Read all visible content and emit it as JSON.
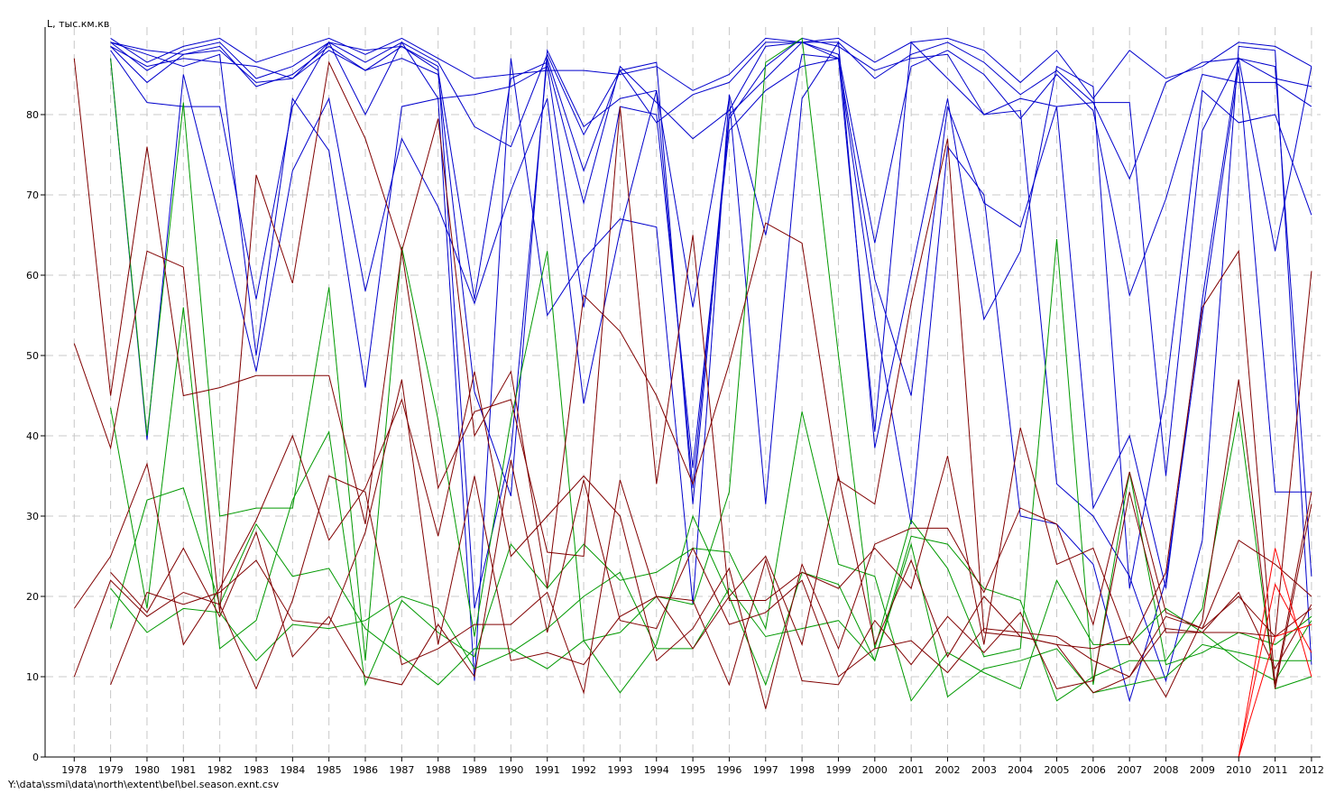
{
  "file_path": "Y:\\data\\ssmi\\data\\north\\extent\\bel\\bel.season.exnt.csv",
  "chart_data": {
    "type": "line",
    "title": "",
    "xlabel": "",
    "ylabel": "L, тыс.км.кв",
    "xlim": [
      1977.2,
      2012.25
    ],
    "ylim": [
      0,
      90
    ],
    "yticks": [
      0,
      10,
      20,
      30,
      40,
      50,
      60,
      70,
      80
    ],
    "grid": true,
    "legend": "none",
    "x": [
      1978,
      1979,
      1980,
      1981,
      1982,
      1983,
      1984,
      1985,
      1986,
      1987,
      1988,
      1989,
      1990,
      1991,
      1992,
      1993,
      1994,
      1995,
      1996,
      1997,
      1998,
      1999,
      2000,
      2001,
      2002,
      2003,
      2004,
      2005,
      2006,
      2007,
      2008,
      2009,
      2010,
      2011,
      2012
    ],
    "series": [
      {
        "color": "#0000cc",
        "values": [
          null,
          89.5,
          86.5,
          88.5,
          89.5,
          86.5,
          88.0,
          89.5,
          87.5,
          89.5,
          87.0,
          84.5,
          85.0,
          85.5,
          85.5,
          85.0,
          86.0,
          83.0,
          85.0,
          89.5,
          89.0,
          89.5,
          86.5,
          89.0,
          89.5,
          88.0,
          84.0,
          88.0,
          82.0,
          88.0,
          84.5,
          86.0,
          89.0,
          88.5,
          86.0
        ]
      },
      {
        "color": "#0000cc",
        "values": [
          null,
          89.0,
          85.5,
          88.0,
          89.0,
          84.5,
          86.0,
          89.0,
          86.5,
          89.0,
          86.5,
          78.5,
          76.0,
          87.5,
          77.5,
          85.5,
          79.0,
          82.5,
          84.0,
          89.0,
          89.0,
          89.0,
          84.5,
          87.5,
          89.0,
          86.5,
          82.5,
          85.5,
          81.5,
          72.0,
          84.0,
          86.5,
          87.0,
          84.5,
          83.5
        ]
      },
      {
        "color": "#0000cc",
        "values": [
          null,
          88.5,
          84.0,
          87.5,
          88.5,
          83.5,
          85.0,
          88.5,
          85.5,
          88.5,
          85.5,
          57.0,
          84.5,
          86.5,
          69.0,
          86.0,
          81.5,
          77.0,
          80.5,
          88.5,
          89.0,
          87.5,
          64.0,
          86.0,
          88.0,
          85.0,
          79.5,
          85.0,
          80.5,
          57.5,
          69.5,
          85.0,
          84.0,
          84.0,
          81.0
        ]
      },
      {
        "color": "#0000cc",
        "values": [
          null,
          88.0,
          81.5,
          81.0,
          81.0,
          57.0,
          81.0,
          89.0,
          80.0,
          89.0,
          82.0,
          82.5,
          83.5,
          86.0,
          56.0,
          81.0,
          80.0,
          36.0,
          78.0,
          83.0,
          86.0,
          87.0,
          59.5,
          45.0,
          81.0,
          69.0,
          66.0,
          81.0,
          81.5,
          81.5,
          35.0,
          78.0,
          87.0,
          63.0,
          86.0
        ]
      },
      {
        "color": "#0000cc",
        "values": [
          null,
          87.0,
          39.5,
          85.0,
          67.0,
          48.0,
          73.0,
          82.0,
          58.0,
          77.0,
          68.5,
          56.5,
          70.5,
          82.0,
          44.0,
          65.5,
          83.0,
          56.0,
          82.0,
          31.5,
          82.0,
          89.0,
          38.5,
          60.0,
          82.0,
          54.5,
          63.0,
          86.0,
          83.5,
          21.0,
          45.5,
          83.0,
          79.0,
          80.0,
          67.5
        ]
      },
      {
        "color": "#0000cc",
        "values": [
          null,
          89.0,
          87.5,
          86.0,
          87.5,
          50.0,
          82.0,
          75.5,
          46.0,
          81.0,
          82.0,
          9.5,
          87.0,
          55.0,
          62.0,
          67.0,
          66.0,
          19.0,
          82.5,
          65.0,
          87.5,
          87.0,
          55.0,
          29.0,
          76.0,
          70.0,
          30.0,
          29.0,
          24.0,
          7.0,
          22.0,
          55.0,
          86.0,
          33.0,
          33.0
        ]
      },
      {
        "color": "#0000cc",
        "values": [
          null,
          89.0,
          88.0,
          87.5,
          88.0,
          84.0,
          84.5,
          89.0,
          88.0,
          88.5,
          86.0,
          18.5,
          38.0,
          87.0,
          73.0,
          85.5,
          86.5,
          31.5,
          79.5,
          86.0,
          89.5,
          88.5,
          85.5,
          87.0,
          87.5,
          80.0,
          80.5,
          34.0,
          30.0,
          22.5,
          9.5,
          27.0,
          88.5,
          88.0,
          11.5
        ]
      },
      {
        "color": "#0000cc",
        "values": [
          null,
          88.5,
          86.0,
          87.0,
          86.5,
          86.0,
          84.5,
          88.0,
          85.5,
          87.0,
          85.0,
          45.5,
          32.5,
          88.0,
          78.5,
          82.0,
          83.0,
          33.5,
          80.0,
          84.5,
          89.0,
          87.0,
          40.5,
          89.0,
          84.5,
          80.0,
          82.0,
          81.0,
          31.0,
          40.0,
          21.0,
          57.0,
          87.0,
          86.0,
          22.5
        ]
      },
      {
        "color": "#009900",
        "values": [
          null,
          87.0,
          40.0,
          81.5,
          30.0,
          31.0,
          31.0,
          58.5,
          12.0,
          63.5,
          42.0,
          15.0,
          42.0,
          63.0,
          14.5,
          15.5,
          20.0,
          19.0,
          33.0,
          86.5,
          89.5,
          50.0,
          13.5,
          29.5,
          23.5,
          12.5,
          13.5,
          64.5,
          9.0,
          35.5,
          11.5,
          13.0,
          15.5,
          14.0,
          17.5
        ]
      },
      {
        "color": "#009900",
        "values": [
          null,
          43.5,
          18.5,
          56.0,
          13.5,
          17.0,
          32.0,
          40.5,
          9.0,
          19.5,
          15.5,
          12.5,
          26.5,
          21.0,
          26.5,
          22.0,
          23.0,
          26.0,
          25.5,
          16.0,
          43.0,
          24.0,
          22.5,
          7.0,
          13.0,
          10.5,
          8.5,
          22.0,
          14.0,
          14.0,
          18.5,
          15.5,
          12.0,
          9.5,
          17.0
        ]
      },
      {
        "color": "#009900",
        "values": [
          null,
          16.0,
          32.0,
          33.5,
          19.0,
          29.0,
          22.5,
          23.5,
          16.0,
          12.5,
          9.0,
          13.5,
          13.5,
          11.0,
          14.5,
          8.0,
          14.0,
          30.0,
          20.0,
          9.0,
          23.0,
          21.5,
          12.0,
          27.5,
          26.5,
          21.0,
          19.5,
          7.0,
          10.0,
          12.0,
          12.0,
          18.5,
          43.0,
          8.5,
          10.0
        ]
      },
      {
        "color": "#009900",
        "values": [
          null,
          21.0,
          15.5,
          18.5,
          18.0,
          12.0,
          16.5,
          16.0,
          17.0,
          20.0,
          18.5,
          11.0,
          13.0,
          16.0,
          20.0,
          23.0,
          13.5,
          13.5,
          21.0,
          15.0,
          16.0,
          17.0,
          12.0,
          26.5,
          7.5,
          11.0,
          12.0,
          13.5,
          8.0,
          9.0,
          10.0,
          14.0,
          13.0,
          12.0,
          12.0
        ]
      },
      {
        "color": "#800000",
        "values": [
          87.0,
          45.0,
          76.0,
          45.0,
          46.0,
          47.5,
          47.5,
          47.5,
          29.0,
          63.0,
          79.5,
          40.0,
          48.0,
          21.0,
          57.5,
          53.0,
          45.0,
          34.0,
          49.0,
          66.5,
          64.0,
          34.5,
          31.5,
          56.5,
          77.0,
          15.5,
          15.0,
          14.0,
          8.0,
          10.0,
          16.0,
          15.5,
          15.5,
          15.0,
          60.5
        ]
      },
      {
        "color": "#800000",
        "values": [
          51.5,
          38.5,
          63.0,
          61.0,
          18.0,
          72.5,
          59.0,
          86.5,
          77.0,
          63.0,
          33.5,
          43.0,
          44.5,
          25.5,
          25.0,
          81.0,
          34.0,
          65.0,
          19.5,
          19.5,
          23.0,
          21.0,
          26.0,
          21.0,
          37.5,
          14.0,
          41.0,
          24.0,
          26.0,
          14.0,
          23.0,
          56.0,
          63.0,
          9.0,
          33.0
        ]
      },
      {
        "color": "#800000",
        "values": [
          18.5,
          25.0,
          36.5,
          14.0,
          21.0,
          29.5,
          40.0,
          27.0,
          33.5,
          44.5,
          27.5,
          48.0,
          25.0,
          30.0,
          35.0,
          30.0,
          12.0,
          16.0,
          23.5,
          6.0,
          24.0,
          13.5,
          26.5,
          28.5,
          28.5,
          20.5,
          31.0,
          29.0,
          16.5,
          35.5,
          18.0,
          16.0,
          27.0,
          24.0,
          20.0
        ]
      },
      {
        "color": "#800000",
        "values": [
          10.0,
          22.0,
          17.5,
          20.5,
          19.0,
          8.5,
          19.5,
          35.0,
          33.0,
          11.5,
          13.5,
          16.5,
          16.5,
          20.5,
          8.0,
          34.5,
          20.0,
          13.5,
          20.0,
          25.0,
          14.0,
          35.0,
          14.0,
          24.5,
          12.5,
          20.0,
          15.0,
          14.0,
          13.5,
          15.0,
          7.5,
          17.0,
          47.0,
          8.5,
          31.5
        ]
      },
      {
        "color": "#800000",
        "values": [
          null,
          9.0,
          20.5,
          19.0,
          20.5,
          24.5,
          17.0,
          16.5,
          28.0,
          47.0,
          14.0,
          35.0,
          12.0,
          13.0,
          11.5,
          17.5,
          20.0,
          19.5,
          9.0,
          24.5,
          9.5,
          9.0,
          17.0,
          11.5,
          17.5,
          13.0,
          18.0,
          8.5,
          9.5,
          33.0,
          15.5,
          15.5,
          20.5,
          11.0,
          19.0
        ]
      },
      {
        "color": "#800000",
        "values": [
          null,
          23.0,
          18.0,
          26.0,
          17.5,
          28.0,
          12.5,
          17.5,
          10.0,
          9.0,
          16.5,
          10.0,
          37.0,
          15.5,
          34.5,
          17.0,
          16.0,
          26.0,
          16.5,
          18.0,
          22.0,
          10.0,
          13.5,
          14.5,
          10.5,
          16.0,
          15.5,
          15.0,
          12.0,
          10.0,
          17.5,
          16.0,
          20.0,
          15.0,
          18.5
        ]
      },
      {
        "color": "#ff0000",
        "values": [
          null,
          null,
          null,
          null,
          null,
          null,
          null,
          null,
          null,
          null,
          null,
          null,
          null,
          null,
          null,
          null,
          null,
          null,
          null,
          null,
          null,
          null,
          null,
          null,
          null,
          null,
          null,
          null,
          null,
          null,
          null,
          null,
          0.0,
          26.0,
          10.0
        ]
      },
      {
        "color": "#ff0000",
        "values": [
          null,
          null,
          null,
          null,
          null,
          null,
          null,
          null,
          null,
          null,
          null,
          null,
          null,
          null,
          null,
          null,
          null,
          null,
          null,
          null,
          null,
          null,
          null,
          null,
          null,
          null,
          null,
          null,
          null,
          null,
          null,
          null,
          0.0,
          21.5,
          13.0
        ]
      },
      {
        "color": "#ff0000",
        "values": [
          null,
          null,
          null,
          null,
          null,
          null,
          null,
          null,
          null,
          null,
          null,
          null,
          null,
          null,
          null,
          null,
          null,
          null,
          null,
          null,
          null,
          null,
          null,
          null,
          null,
          null,
          null,
          null,
          null,
          null,
          null,
          null,
          0.0,
          15.0,
          16.5
        ]
      },
      {
        "color": "#800000",
        "values": [
          0,
          0,
          0,
          0,
          0,
          0,
          0,
          0,
          0,
          0,
          0,
          0,
          0,
          0,
          0,
          0,
          0,
          0,
          0,
          0,
          0,
          0,
          0,
          0,
          0,
          0,
          0,
          0,
          0,
          0,
          0,
          0,
          0,
          0,
          0
        ]
      }
    ]
  }
}
